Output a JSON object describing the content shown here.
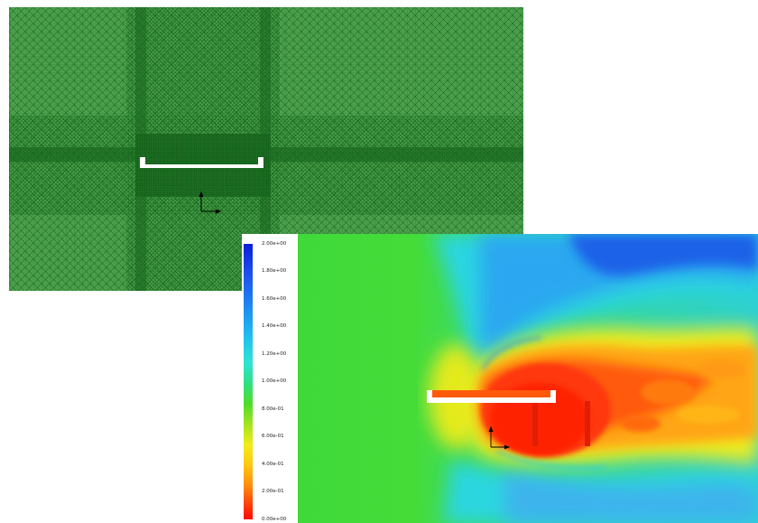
{
  "legend": {
    "labels": [
      "2.00e+00",
      "1.80e+00",
      "1.60e+00",
      "1.40e+00",
      "1.20e+00",
      "1.00e+00",
      "8.00e-01",
      "6.00e-01",
      "4.00e-01",
      "2.00e-01",
      "0.00e+00"
    ],
    "colormap": [
      "#0a1fd8",
      "#1e8ff0",
      "#2ee3d6",
      "#4fdc2a",
      "#f1ec18",
      "#ff8a0d",
      "#ff0a02"
    ]
  },
  "colors": {
    "mesh_background": "#2f8a2f",
    "mesh_line": "#0d5a12",
    "geometry": "#ffffff"
  }
}
